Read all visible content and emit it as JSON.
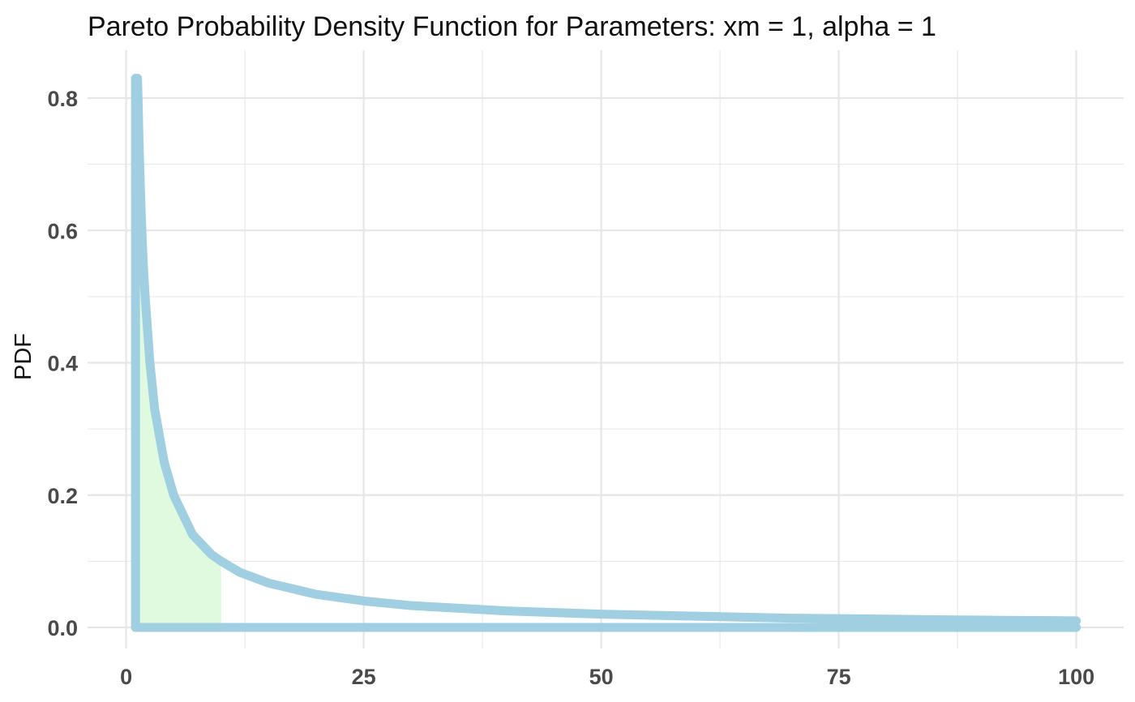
{
  "chart_data": {
    "type": "area",
    "title": "Pareto Probability Density Function for Parameters: xm = 1, alpha = 1",
    "xlabel": "",
    "ylabel": "PDF",
    "xlim": [
      0,
      100
    ],
    "ylim": [
      0,
      0.83
    ],
    "x_ticks": [
      0,
      25,
      50,
      75,
      100
    ],
    "x_tick_labels": [
      "0",
      "25",
      "50",
      "75",
      "100"
    ],
    "y_ticks": [
      0.0,
      0.2,
      0.4,
      0.6,
      0.8
    ],
    "y_tick_labels": [
      "0.0",
      "0.2",
      "0.4",
      "0.6",
      "0.8"
    ],
    "grid": true,
    "legend": "none",
    "series": [
      {
        "x": [
          1.2,
          1.4,
          1.6,
          1.8,
          2,
          2.5,
          3,
          3.5,
          4,
          5,
          6,
          7,
          8,
          9,
          10,
          12,
          15,
          20,
          25,
          30,
          40,
          50,
          60,
          70,
          80,
          90,
          100
        ],
        "y": [
          0.83,
          0.71,
          0.62,
          0.55,
          0.5,
          0.4,
          0.33,
          0.29,
          0.25,
          0.2,
          0.17,
          0.14,
          0.125,
          0.11,
          0.1,
          0.083,
          0.067,
          0.05,
          0.04,
          0.033,
          0.025,
          0.02,
          0.017,
          0.014,
          0.0125,
          0.011,
          0.01
        ]
      }
    ],
    "shaded_region": {
      "x_from": 1.2,
      "x_to": 10
    },
    "colors": {
      "line": "#9fcfe0",
      "fill": "#e0fae0",
      "grid": "#e6e6e6"
    }
  }
}
